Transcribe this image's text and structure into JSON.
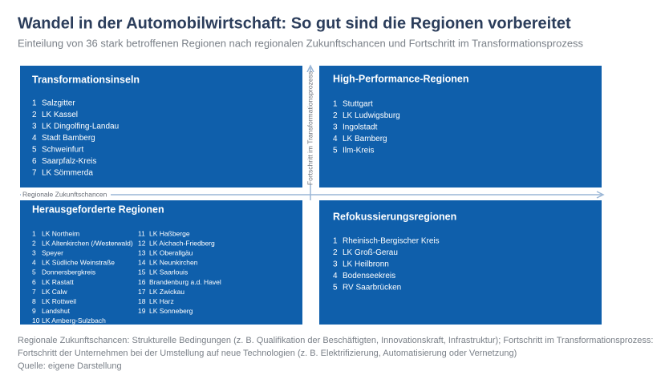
{
  "header": {
    "title": "Wandel in der Automobilwirtschaft: So gut sind die Regionen vorbereitet",
    "subtitle": "Einteilung von 36 stark betroffenen Regionen nach regionalen Zukunftschancen und Fortschritt im Transformationsprozess"
  },
  "axes": {
    "x_label": "Regionale Zukunftschancen",
    "y_label": "Fortschritt im Transformationsprozess"
  },
  "quadrants": [
    {
      "title": "Transformationsinseln",
      "items": [
        {
          "rank": 1,
          "name": "Salzgitter"
        },
        {
          "rank": 2,
          "name": "LK Kassel"
        },
        {
          "rank": 3,
          "name": "LK Dingolfing-Landau"
        },
        {
          "rank": 4,
          "name": "Stadt Bamberg"
        },
        {
          "rank": 5,
          "name": "Schweinfurt"
        },
        {
          "rank": 6,
          "name": "Saarpfalz-Kreis"
        },
        {
          "rank": 7,
          "name": "LK Sömmerda"
        }
      ]
    },
    {
      "title": "High-Performance-Regionen",
      "items": [
        {
          "rank": 1,
          "name": "Stuttgart"
        },
        {
          "rank": 2,
          "name": "LK Ludwigsburg"
        },
        {
          "rank": 3,
          "name": "Ingolstadt"
        },
        {
          "rank": 4,
          "name": "LK Bamberg"
        },
        {
          "rank": 5,
          "name": "Ilm-Kreis"
        }
      ]
    },
    {
      "title": "Herausgeforderte Regionen",
      "items": [
        {
          "rank": 1,
          "name": "LK Northeim"
        },
        {
          "rank": 2,
          "name": "LK Altenkirchen (/Westerwald)"
        },
        {
          "rank": 3,
          "name": "Speyer"
        },
        {
          "rank": 4,
          "name": "LK Südliche Weinstraße"
        },
        {
          "rank": 5,
          "name": "Donnersbergkreis"
        },
        {
          "rank": 6,
          "name": "LK Rastatt"
        },
        {
          "rank": 7,
          "name": "LK Calw"
        },
        {
          "rank": 8,
          "name": "LK  Rottweil"
        },
        {
          "rank": 9,
          "name": "Landshut"
        },
        {
          "rank": 10,
          "name": "LK Amberg-Sulzbach"
        },
        {
          "rank": 11,
          "name": "LK Haßberge"
        },
        {
          "rank": 12,
          "name": "LK Aichach-Friedberg"
        },
        {
          "rank": 13,
          "name": "LK Oberallgäu"
        },
        {
          "rank": 14,
          "name": "LK Neunkirchen"
        },
        {
          "rank": 15,
          "name": "LK Saarlouis"
        },
        {
          "rank": 16,
          "name": "Brandenburg a.d. Havel"
        },
        {
          "rank": 17,
          "name": "LK Zwickau"
        },
        {
          "rank": 18,
          "name": "LK Harz"
        },
        {
          "rank": 19,
          "name": "LK Sonneberg"
        }
      ]
    },
    {
      "title": "Refokussierungsregionen",
      "items": [
        {
          "rank": 1,
          "name": "Rheinisch-Bergischer Kreis"
        },
        {
          "rank": 2,
          "name": "LK Groß-Gerau"
        },
        {
          "rank": 3,
          "name": "LK Heilbronn"
        },
        {
          "rank": 4,
          "name": "Bodenseekreis"
        },
        {
          "rank": 5,
          "name": "RV Saarbrücken"
        }
      ]
    }
  ],
  "footer": {
    "notes": [
      "Regionale Zukunftschancen: Strukturelle Bedingungen (z. B. Qualifikation der Beschäftigten, Innovationskraft, Infrastruktur); Fortschritt im  Transformationsprozess:",
      "Fortschritt der Unternehmen bei der Umstellung auf neue Technologien (z. B. Elektrifizierung, Automatisierung oder Vernetzung)"
    ],
    "source": "Quelle: eigene Darstellung"
  }
}
